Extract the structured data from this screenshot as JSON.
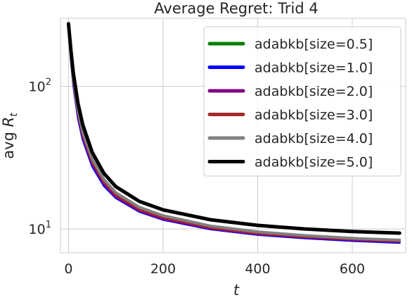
{
  "chart_data": {
    "type": "line",
    "title": "Average Regret: Trid 4",
    "xlabel": "t",
    "ylabel_prefix": "avg ",
    "ylabel_var": "R",
    "ylabel_sub": "t",
    "y_scale": "log",
    "xlim": [
      -17,
      713
    ],
    "ylim": [
      6.8,
      300
    ],
    "x_ticks": [
      0,
      200,
      400,
      600
    ],
    "x_tick_labels": [
      "0",
      "200",
      "400",
      "600"
    ],
    "y_ticks": [
      10,
      100
    ],
    "y_tick_base": "10",
    "y_tick_exponents": [
      "1",
      "2"
    ],
    "grid": true,
    "legend_position": "top-right",
    "x": [
      0,
      5,
      10,
      20,
      30,
      50,
      75,
      100,
      150,
      200,
      300,
      400,
      500,
      600,
      700
    ],
    "series": [
      {
        "name": "adabkb[size=0.5]",
        "color": "#008000",
        "line_width": 3,
        "values": [
          268,
          160,
          108,
          64,
          45,
          29,
          21,
          17,
          13.5,
          11.8,
          10.1,
          9.2,
          8.7,
          8.35,
          8.1
        ]
      },
      {
        "name": "adabkb[size=1.0]",
        "color": "#0000ff",
        "line_width": 3,
        "values": [
          265,
          155,
          103,
          60,
          42.5,
          27.5,
          20,
          16.5,
          13.2,
          11.6,
          9.95,
          9.1,
          8.6,
          8.25,
          8.0
        ]
      },
      {
        "name": "adabkb[size=2.0]",
        "color": "#800080",
        "line_width": 3,
        "values": [
          268,
          158,
          106,
          63,
          44,
          28.5,
          20.6,
          16.8,
          13.4,
          11.75,
          10.05,
          9.2,
          8.7,
          8.35,
          8.1
        ]
      },
      {
        "name": "adabkb[size=3.0]",
        "color": "#a52a2a",
        "line_width": 3,
        "values": [
          270,
          162,
          110,
          65,
          46,
          29.5,
          21.3,
          17.3,
          13.7,
          12.0,
          10.2,
          9.3,
          8.8,
          8.45,
          8.2
        ]
      },
      {
        "name": "adabkb[size=4.0]",
        "color": "#808080",
        "line_width": 4,
        "values": [
          272,
          168,
          114,
          68,
          48,
          31,
          22.2,
          18,
          14.2,
          12.4,
          10.5,
          9.55,
          9.0,
          8.6,
          8.35
        ]
      },
      {
        "name": "adabkb[size=5.0]",
        "color": "#000000",
        "line_width": 5,
        "values": [
          275,
          180,
          125,
          76,
          54,
          34.5,
          24.5,
          19.8,
          15.6,
          13.6,
          11.6,
          10.6,
          10.0,
          9.6,
          9.35
        ]
      }
    ]
  }
}
